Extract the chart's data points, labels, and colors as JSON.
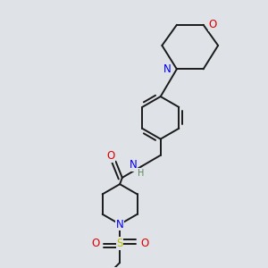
{
  "bg_color": "#dfe3e8",
  "atom_colors": {
    "C": "#1a1a1a",
    "N": "#0000ee",
    "O": "#dd0000",
    "S": "#bbbb00",
    "H": "#558855"
  },
  "bond_color": "#1a1a1a",
  "bond_width": 1.4,
  "font_size": 8.5,
  "font_size_h": 7.0
}
